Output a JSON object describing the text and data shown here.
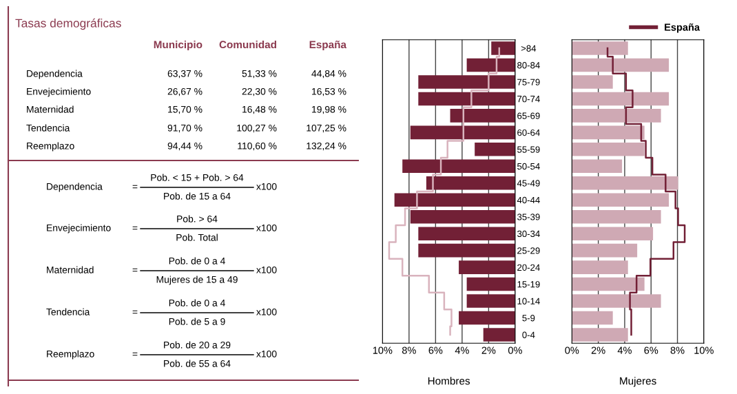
{
  "chart_data": [
    {
      "type": "other",
      "title": "Tasas demográficas",
      "categories": [
        "Dependencia",
        "Envejecimiento",
        "Maternidad",
        "Tendencia",
        "Reemplazo"
      ],
      "series": [
        {
          "name": "Municipio",
          "values": [
            63.37,
            26.67,
            15.7,
            91.7,
            94.44
          ],
          "value_labels": [
            "63,37 %",
            "26,67 %",
            "15,70 %",
            "91,70 %",
            "94,44 %"
          ]
        },
        {
          "name": "Comunidad",
          "values": [
            51.33,
            22.3,
            16.48,
            100.27,
            110.6
          ],
          "value_labels": [
            "51,33 %",
            "22,30 %",
            "16,48 %",
            "100,27 %",
            "110,60 %"
          ]
        },
        {
          "name": "España",
          "values": [
            44.84,
            16.53,
            19.98,
            107.25,
            132.24
          ],
          "value_labels": [
            "44,84 %",
            "16,53 %",
            "19,98 %",
            "107,25 %",
            "132,24 %"
          ]
        }
      ],
      "annotations": [
        "Dependencia",
        "=",
        "Pob. < 15 + Pob. > 64",
        "Pob. de 15 a 64",
        "x100",
        "Envejecimiento",
        "=",
        "Pob. > 64",
        "Pob. Total",
        "x100",
        "Maternidad",
        "=",
        "Pob. de 0 a 4",
        "Mujeres de 15 a 49",
        "x100",
        "Tendencia",
        "=",
        "Pob. de 0 a 4",
        "Pob. de 5 a 9",
        "x100",
        "Reemplazo",
        "=",
        "Pob. de 20 a 29",
        "Pob. de 55 a 64",
        "x100"
      ]
    },
    {
      "type": "bar",
      "orientation": "horizontal",
      "xlabel": "Hombres",
      "grid": "x",
      "categories": [
        ">84",
        "80-84",
        "75-79",
        "70-74",
        "65-69",
        "60-64",
        "55-59",
        "50-54",
        "45-49",
        "40-44",
        "35-39",
        "30-34",
        "25-29",
        "20-24",
        "15-19",
        "10-14",
        "5-9",
        "0-4"
      ],
      "xlim": [
        10,
        0
      ],
      "xticks": [
        {
          "value": 10,
          "label": "10%"
        },
        {
          "value": 8,
          "label": "8%"
        },
        {
          "value": 6,
          "label": "6%"
        },
        {
          "value": 4,
          "label": "4%"
        },
        {
          "value": 2,
          "label": "2%"
        },
        {
          "value": 0,
          "label": "0%"
        }
      ],
      "series": [
        {
          "color": "#722036",
          "values": [
            1.8,
            3.65,
            7.3,
            7.3,
            4.9,
            7.9,
            3.05,
            8.5,
            6.7,
            9.1,
            7.9,
            7.3,
            7.3,
            4.25,
            3.65,
            3.65,
            4.25,
            2.4
          ]
        },
        {
          "type": "step",
          "color": "#d9b3bd",
          "values": [
            1.2,
            1.4,
            2.0,
            3.3,
            3.9,
            3.9,
            5.1,
            5.6,
            6.2,
            7.4,
            8.3,
            9.0,
            9.5,
            8.5,
            6.5,
            5.35,
            4.8,
            4.9
          ]
        }
      ]
    },
    {
      "type": "bar",
      "orientation": "horizontal",
      "xlabel": "Mujeres",
      "grid": "x",
      "tick_labels": "x",
      "legend": "top right",
      "categories": [
        null,
        null,
        null,
        null,
        null,
        null,
        null,
        null,
        null,
        null,
        null,
        null,
        null,
        null,
        null,
        null,
        null,
        null
      ],
      "xlim": [
        0,
        10
      ],
      "xticks": [
        {
          "value": 0,
          "label": "0%"
        },
        {
          "value": 2,
          "label": "2%"
        },
        {
          "value": 4,
          "label": "4%"
        },
        {
          "value": 6,
          "label": "6%"
        },
        {
          "value": 8,
          "label": "8%"
        },
        {
          "value": 10,
          "label": "10%"
        }
      ],
      "series": [
        {
          "color": "#cfa9b4",
          "values": [
            4.25,
            7.35,
            3.1,
            7.35,
            6.75,
            5.5,
            5.5,
            3.8,
            8.05,
            7.35,
            6.75,
            6.15,
            4.95,
            4.25,
            5.5,
            6.75,
            3.1,
            4.25
          ]
        },
        {
          "type": "step",
          "name": "España",
          "color": "#722036",
          "values": [
            2.7,
            3.1,
            4.1,
            4.6,
            4.1,
            5.25,
            5.6,
            6.1,
            7.1,
            7.85,
            8.05,
            8.55,
            7.7,
            5.95,
            4.9,
            4.4,
            4.5,
            4.5
          ]
        }
      ]
    }
  ]
}
